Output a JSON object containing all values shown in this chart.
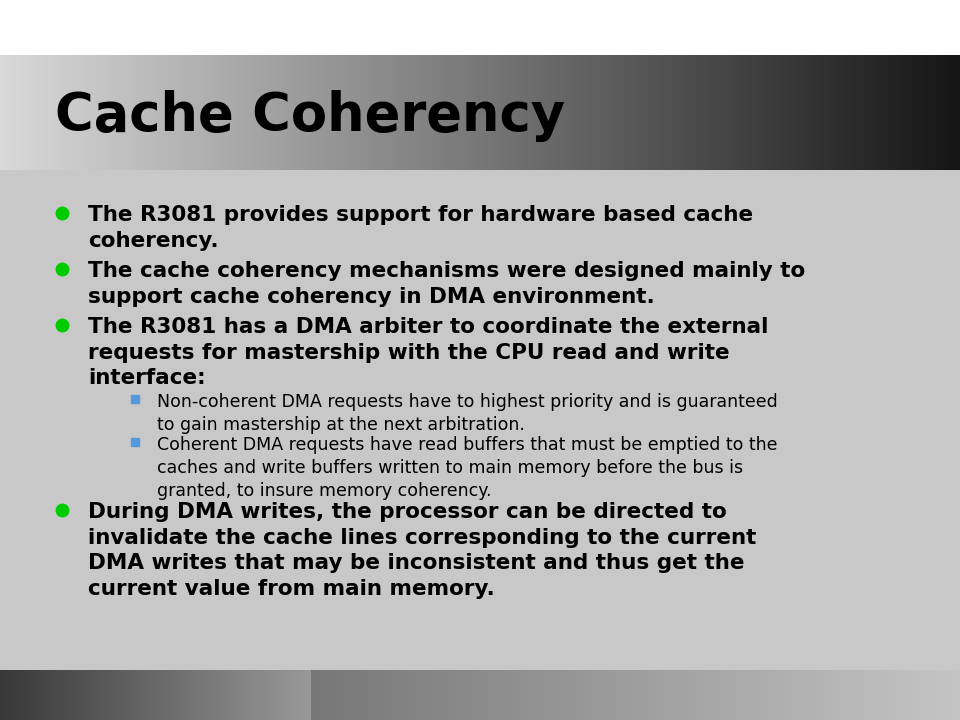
{
  "title": "Cache Coherency",
  "title_fontsize": 38,
  "title_color": "#000000",
  "title_font": "sans-serif",
  "title_weight": "bold",
  "bg_top_color": "#ffffff",
  "bg_mid_color": "#d0d0d0",
  "bullet_color": "#00cc00",
  "sub_bullet_color": "#5599dd",
  "text_color": "#000000",
  "body_fontsize": 15.5,
  "sub_fontsize": 12.5,
  "bullet_items": [
    "The R3081 provides support for hardware based cache\ncoherency.",
    "The cache coherency mechanisms were designed mainly to\nsupport cache coherency in DMA environment.",
    "The R3081 has a DMA arbiter to coordinate the external\nrequests for mastership with the CPU read and write\ninterface:"
  ],
  "sub_bullet_items": [
    "Non-coherent DMA requests have to highest priority and is guaranteed\nto gain mastership at the next arbitration.",
    "Coherent DMA requests have read buffers that must be emptied to the\ncaches and write buffers written to main memory before the bus is\ngranted, to insure memory coherency."
  ],
  "last_bullet": "During DMA writes, the processor can be directed to\ninvalidate the cache lines corresponding to the current\nDMA writes that may be inconsistent and thus get the\ncurrent value from main memory."
}
